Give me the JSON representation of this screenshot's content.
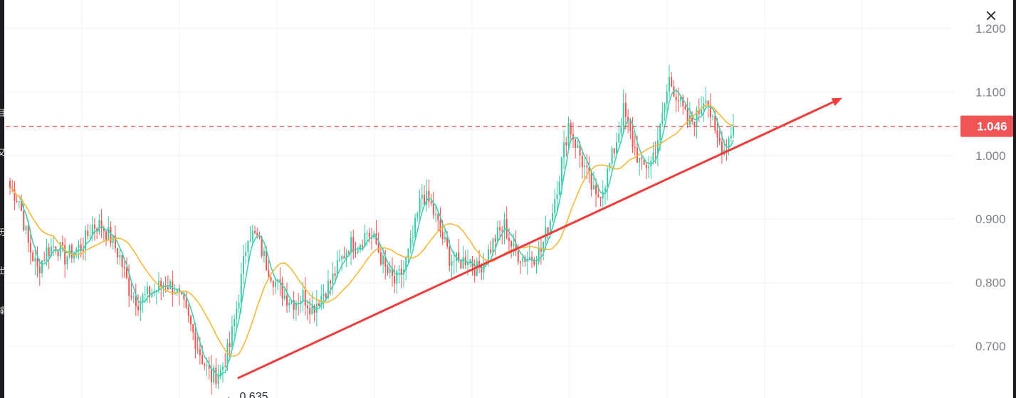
{
  "colors": {
    "up": "#26a69a",
    "up_fill": "#3cc8a4",
    "down": "#ef5350",
    "ma_fast": "#3fd1b2",
    "ma_slow": "#f6b93b",
    "trendline": "#f23c3c",
    "price_line": "#f05454",
    "grid": "#f0f3f7",
    "axis_text": "#7c818a"
  },
  "icons": {
    "close": "close-icon"
  },
  "chart_data": {
    "type": "candlestick",
    "y_ticks": [
      "1.200",
      "1.100",
      "1.000",
      "0.900",
      "0.800",
      "0.700"
    ],
    "ylim": [
      0.63,
      1.235
    ],
    "current_price": 1.046,
    "current_price_label": "1.046",
    "low_label": "← 0.635",
    "low_value": 0.635,
    "grid": true,
    "series": [
      {
        "type": "candlestick",
        "anchors": [
          0.95,
          0.93,
          0.86,
          0.82,
          0.85,
          0.86,
          0.84,
          0.85,
          0.86,
          0.89,
          0.89,
          0.87,
          0.84,
          0.79,
          0.77,
          0.78,
          0.79,
          0.8,
          0.79,
          0.76,
          0.72,
          0.68,
          0.65,
          0.66,
          0.7,
          0.78,
          0.88,
          0.87,
          0.83,
          0.8,
          0.78,
          0.77,
          0.78,
          0.76,
          0.78,
          0.8,
          0.83,
          0.86,
          0.86,
          0.88,
          0.86,
          0.82,
          0.8,
          0.82,
          0.87,
          0.94,
          0.92,
          0.88,
          0.84,
          0.83,
          0.84,
          0.82,
          0.84,
          0.87,
          0.89,
          0.85,
          0.84,
          0.84,
          0.85,
          0.9,
          0.97,
          1.05,
          1.01,
          0.97,
          0.93,
          0.96,
          1.01,
          1.07,
          1.02,
          0.98,
          0.99,
          1.04,
          1.12,
          1.09,
          1.05,
          1.06,
          1.1,
          1.03,
          1.01,
          1.046
        ]
      },
      {
        "name": "",
        "type": "ma_fast"
      },
      {
        "name": "",
        "type": "ma_slow"
      }
    ],
    "trendline": {
      "from": 0.65,
      "to": 1.085
    }
  }
}
